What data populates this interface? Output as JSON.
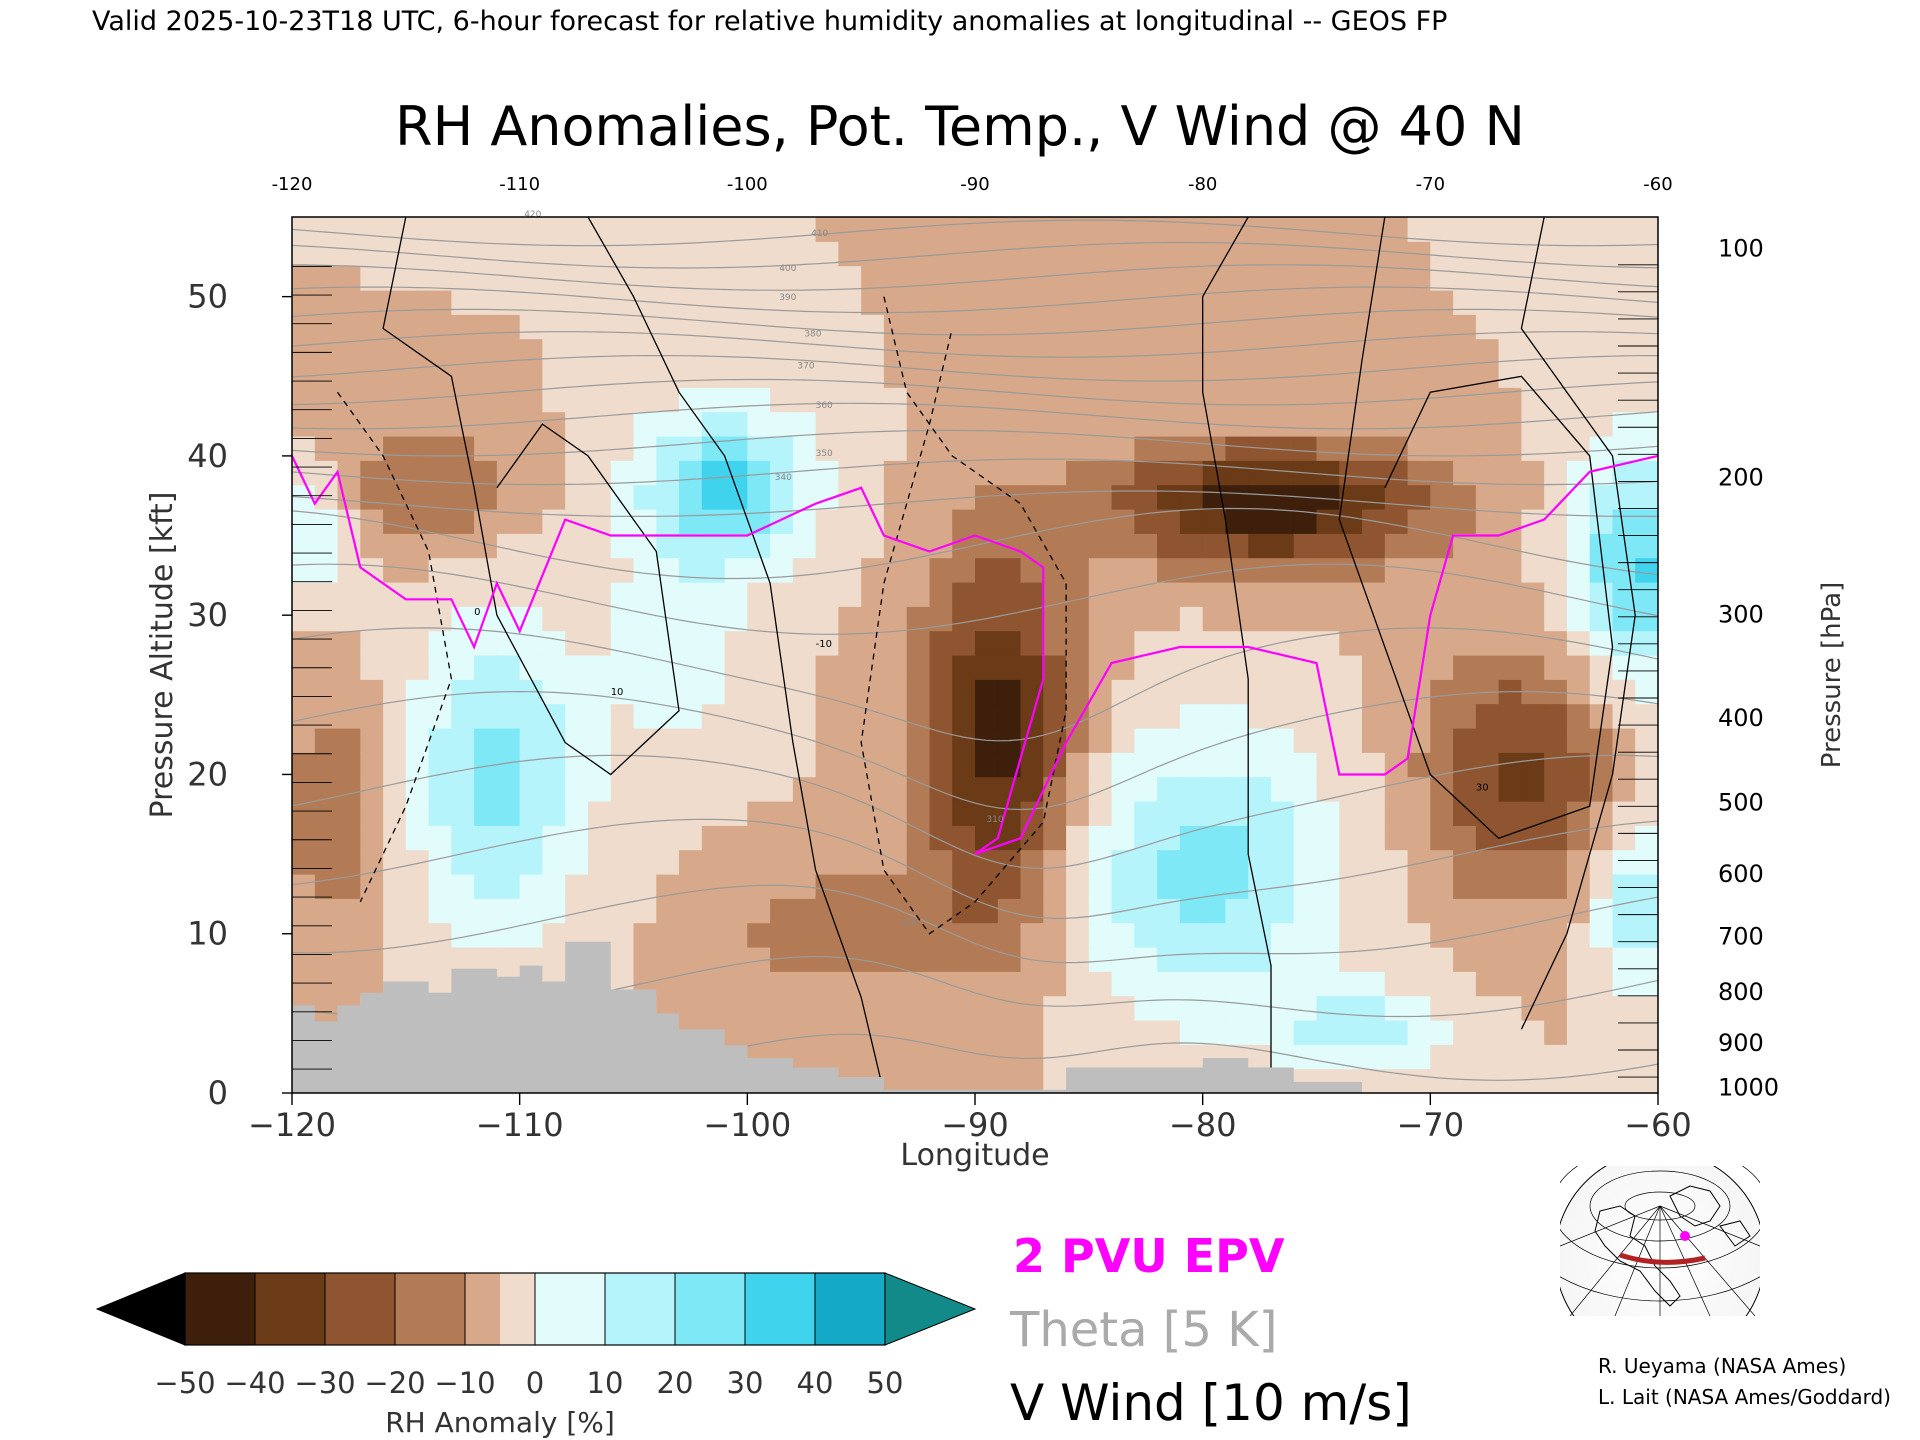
{
  "header": {
    "valid_line": "Valid 2025-10-23T18 UTC, 6-hour forecast for relative humidity anomalies at longitudinal -- GEOS FP"
  },
  "chart_data": {
    "type": "heatmap",
    "title": "RH Anomalies, Pot. Temp., V Wind @ 40 N",
    "xlabel": "Longitude",
    "ylabel_left": "Pressure Altitude [kft]",
    "ylabel_right": "Pressure [hPa]",
    "xlim": [
      -120,
      -60
    ],
    "ylim": [
      0,
      55
    ],
    "x_ticks": [
      -120,
      -110,
      -100,
      -90,
      -80,
      -70,
      -60
    ],
    "x_tick_labels": [
      "−120",
      "−110",
      "−100",
      "−90",
      "−80",
      "−70",
      "−60"
    ],
    "top_tick_labels": [
      "-120",
      "-110",
      "-100",
      "-90",
      "-80",
      "-70",
      "-60"
    ],
    "y_ticks": [
      0,
      10,
      20,
      30,
      40,
      50
    ],
    "y_tick_labels": [
      "0",
      "10",
      "20",
      "30",
      "40",
      "50"
    ],
    "pressure_ticks": [
      {
        "hPa": "100",
        "kft": 53.1
      },
      {
        "hPa": "200",
        "kft": 38.7
      },
      {
        "hPa": "300",
        "kft": 30.1
      },
      {
        "hPa": "400",
        "kft": 23.6
      },
      {
        "hPa": "500",
        "kft": 18.3
      },
      {
        "hPa": "600",
        "kft": 13.8
      },
      {
        "hPa": "700",
        "kft": 9.9
      },
      {
        "hPa": "800",
        "kft": 6.4
      },
      {
        "hPa": "900",
        "kft": 3.2
      },
      {
        "hPa": "1000",
        "kft": 0.4
      }
    ],
    "colorbar": {
      "label": "RH Anomaly [%]",
      "tick_labels": [
        "−50",
        "−40",
        "−30",
        "−20",
        "−10",
        "0",
        "10",
        "20",
        "30",
        "40",
        "50"
      ],
      "colors": [
        "#000000",
        "#3d1f0c",
        "#6b3a17",
        "#8f5530",
        "#b37b55",
        "#d7a98a",
        "#efdccd",
        "#e2fbfb",
        "#b5f4fa",
        "#7ee8f6",
        "#3fd3ee",
        "#15a9c8",
        "#138a8a"
      ]
    },
    "legend": {
      "epv": "2 PVU EPV",
      "theta": "Theta [5 K]",
      "vwind": "V Wind [10 m/s]",
      "epv_color": "#ff00ff",
      "theta_color": "#aaaaaa",
      "vwind_color": "#000000"
    },
    "theta_levels": [
      300,
      310,
      340,
      350,
      360,
      370,
      380,
      390,
      400,
      410,
      420
    ],
    "vwind_levels": [
      -10,
      0,
      10,
      30
    ],
    "colors": {
      "terrain": "#bebebe",
      "theta": "#999999",
      "epv": "#ff00ff"
    }
  },
  "credits": {
    "line1": "R. Ueyama (NASA Ames)",
    "line2": "L. Lait (NASA Ames/Goddard)"
  }
}
